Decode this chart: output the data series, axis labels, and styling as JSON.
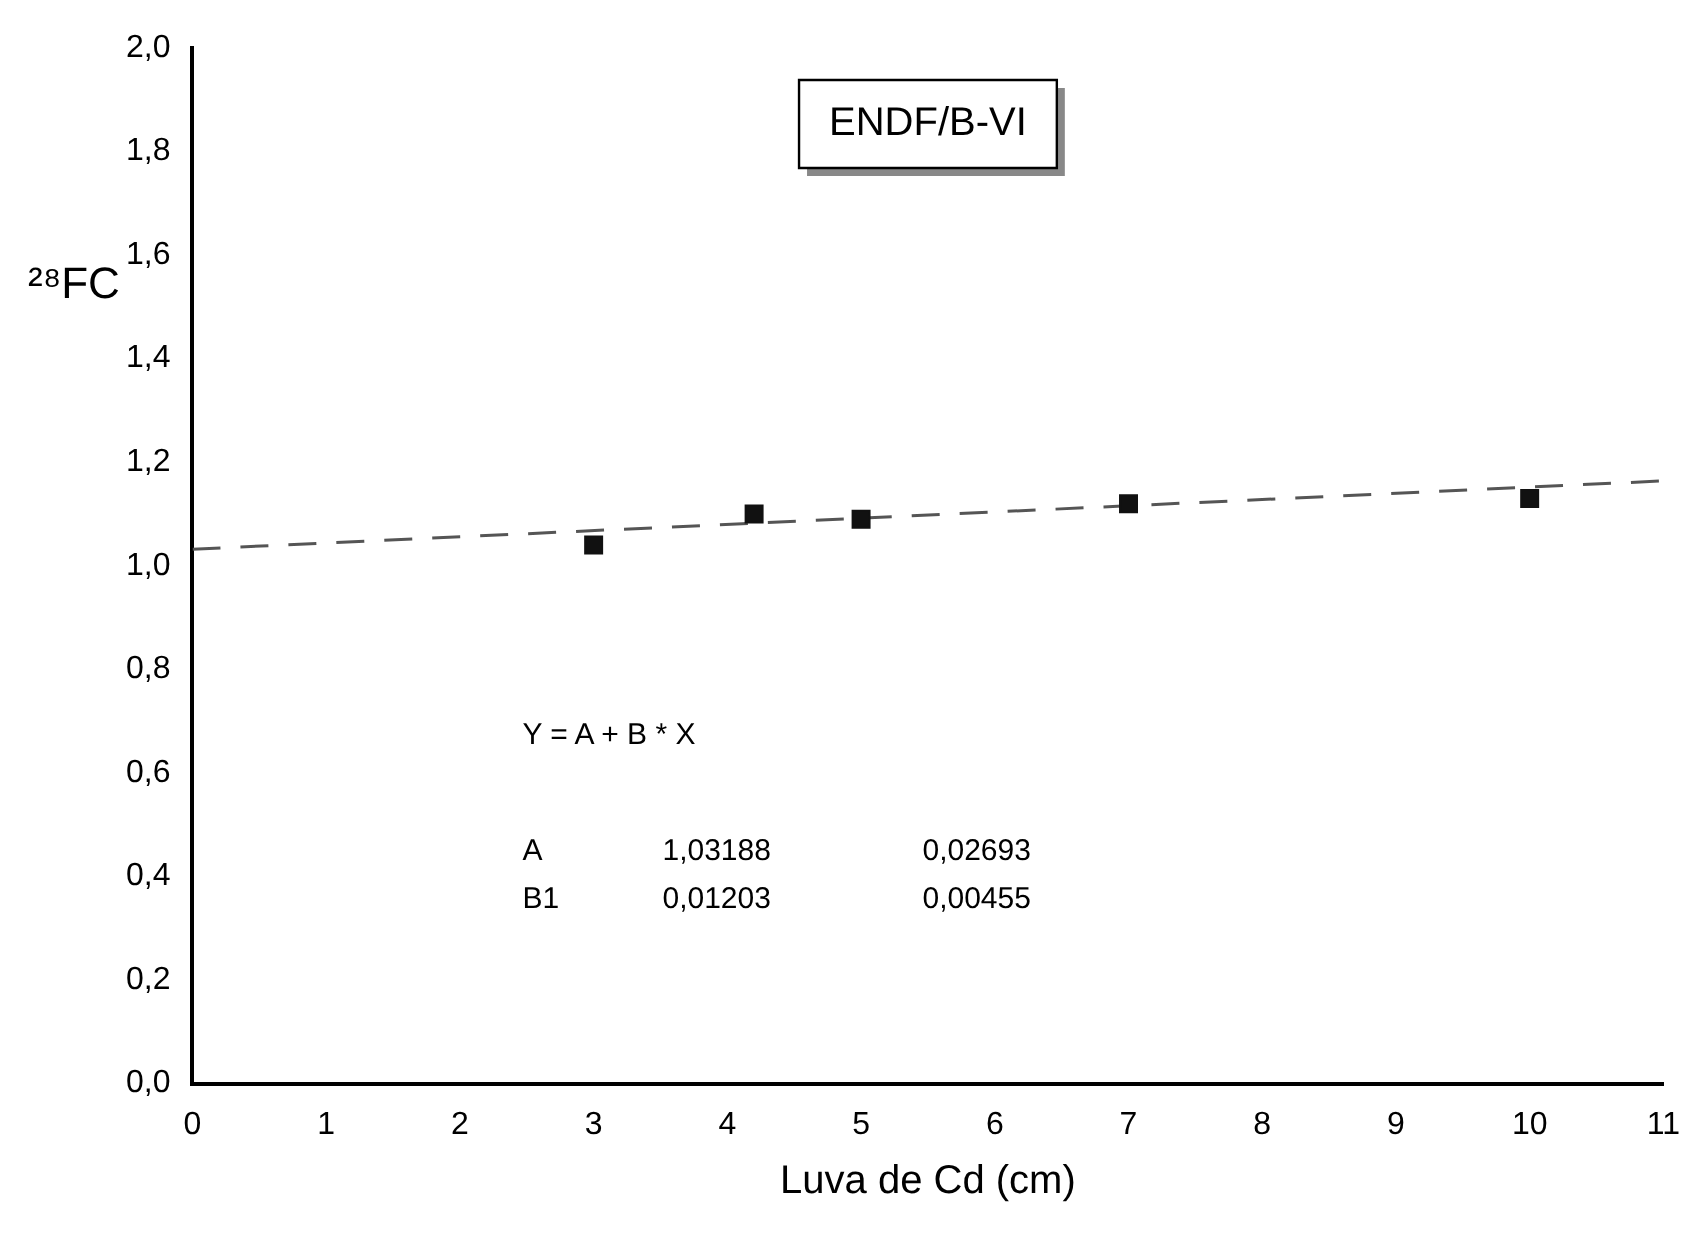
{
  "chart_data": {
    "type": "scatter",
    "title": "ENDF/B-VI",
    "xlabel": "Luva de Cd (cm)",
    "ylabel": "²⁸FC",
    "series": [
      {
        "type": "scatter",
        "color": "#111111",
        "marker": "square",
        "x": [
          3,
          4.2,
          5,
          7,
          10
        ],
        "values": [
          1.04,
          1.1,
          1.09,
          1.12,
          1.13
        ]
      },
      {
        "type": "line",
        "color": "#555555",
        "line_style": "dashed",
        "marker": "none",
        "x": [
          0,
          11
        ],
        "values": [
          1.032,
          1.164
        ]
      }
    ],
    "xlim": [
      0,
      11
    ],
    "xticks": [
      0,
      1,
      2,
      3,
      4,
      5,
      6,
      7,
      8,
      9,
      10,
      11
    ],
    "ylim": [
      0,
      2
    ],
    "yticks": [
      {
        "value": 0,
        "label": "0,0"
      },
      {
        "value": 0.2,
        "label": "0,2"
      },
      {
        "value": 0.4,
        "label": "0,4"
      },
      {
        "value": 0.6,
        "label": "0,6"
      },
      {
        "value": 0.8,
        "label": "0,8"
      },
      {
        "value": 1,
        "label": "1,0"
      },
      {
        "value": 1.2,
        "label": "1,2"
      },
      {
        "value": 1.4,
        "label": "1,4"
      },
      {
        "value": 1.6,
        "label": "1,6"
      },
      {
        "value": 1.8,
        "label": "1,8"
      },
      {
        "value": 2,
        "label": "2,0"
      }
    ],
    "grid": false,
    "legend": false,
    "annotations": [
      "Y = A + B * X",
      "A",
      "1,03188",
      "0,02693",
      "B1",
      "0,01203",
      "0,00455"
    ]
  }
}
